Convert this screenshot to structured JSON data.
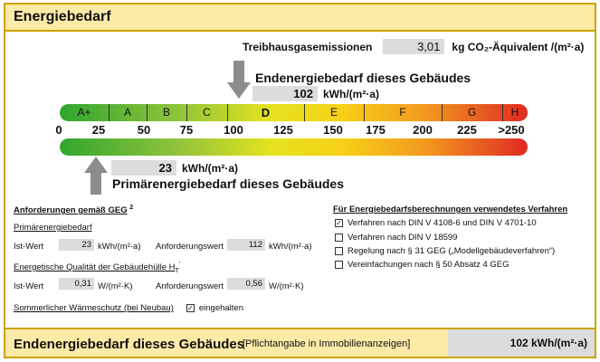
{
  "title": "Energiebedarf",
  "emissions": {
    "label": "Treibhausgasemissionen",
    "value": "3,01",
    "unit": "kg CO₂-Äquivalent /(m²·a)"
  },
  "end_energy": {
    "label": "Endenergiebedarf dieses Gebäudes",
    "value": "102",
    "unit": "kWh/(m²·a)"
  },
  "scale": {
    "classes": [
      "A+",
      "A",
      "B",
      "C",
      "D",
      "E",
      "F",
      "G",
      "H"
    ],
    "active_class": "D",
    "ticks": [
      "0",
      "25",
      "50",
      "75",
      "100",
      "125",
      "150",
      "175",
      "200",
      "225",
      ">250"
    ]
  },
  "primary_energy": {
    "label": "Primärenergiebedarf dieses Gebäudes",
    "value": "23",
    "unit": "kWh/(m²·a)"
  },
  "requirements": {
    "heading": "Anforderungen gemäß GEG",
    "heading_sup": "2",
    "primary_heading": "Primärenergiebedarf",
    "ist_label": "Ist-Wert",
    "ist_value": "23",
    "ist_unit": "kWh/(m²·a)",
    "anf_label": "Anforderungswert",
    "anf_value": "112",
    "anf_unit": "kWh/(m²·a)",
    "envelope_heading": "Energetische Qualität der Gebäudehülle H",
    "envelope_sub": "T",
    "envelope_sup": "'",
    "ist2_label": "Ist-Wert",
    "ist2_value": "0,31",
    "ist2_unit": "W/(m²·K)",
    "anf2_label": "Anforderungswert",
    "anf2_value": "0,56",
    "anf2_unit": "W/(m²·K)",
    "summer_label": "Sommerlicher Wärmeschutz (bei Neubau)",
    "summer_checked": true,
    "summer_status": "eingehalten"
  },
  "methods": {
    "heading": "Für Energiebedarfsberechnungen verwendetes Verfahren",
    "items": [
      {
        "label": "Verfahren nach DIN V 4108-6 und DIN V 4701-10",
        "checked": true
      },
      {
        "label": "Verfahren nach DIN V 18599",
        "checked": false
      },
      {
        "label": "Regelung nach § 31 GEG („Modellgebäudeverfahren“)",
        "checked": false
      },
      {
        "label": "Vereinfachungen nach § 50 Absatz 4 GEG",
        "checked": false
      }
    ]
  },
  "footer": {
    "label": "Endenergiebedarf dieses Gebäudes",
    "note": "[Pflichtangabe in Immobilienanzeigen]",
    "value": "102 kWh/(m²·a)"
  },
  "colors": {
    "accent_yellow": "#fdeaa7",
    "border_gold": "#c9a400",
    "value_grey": "#dcdcdc",
    "arrow_grey": "#8c8c8c"
  }
}
